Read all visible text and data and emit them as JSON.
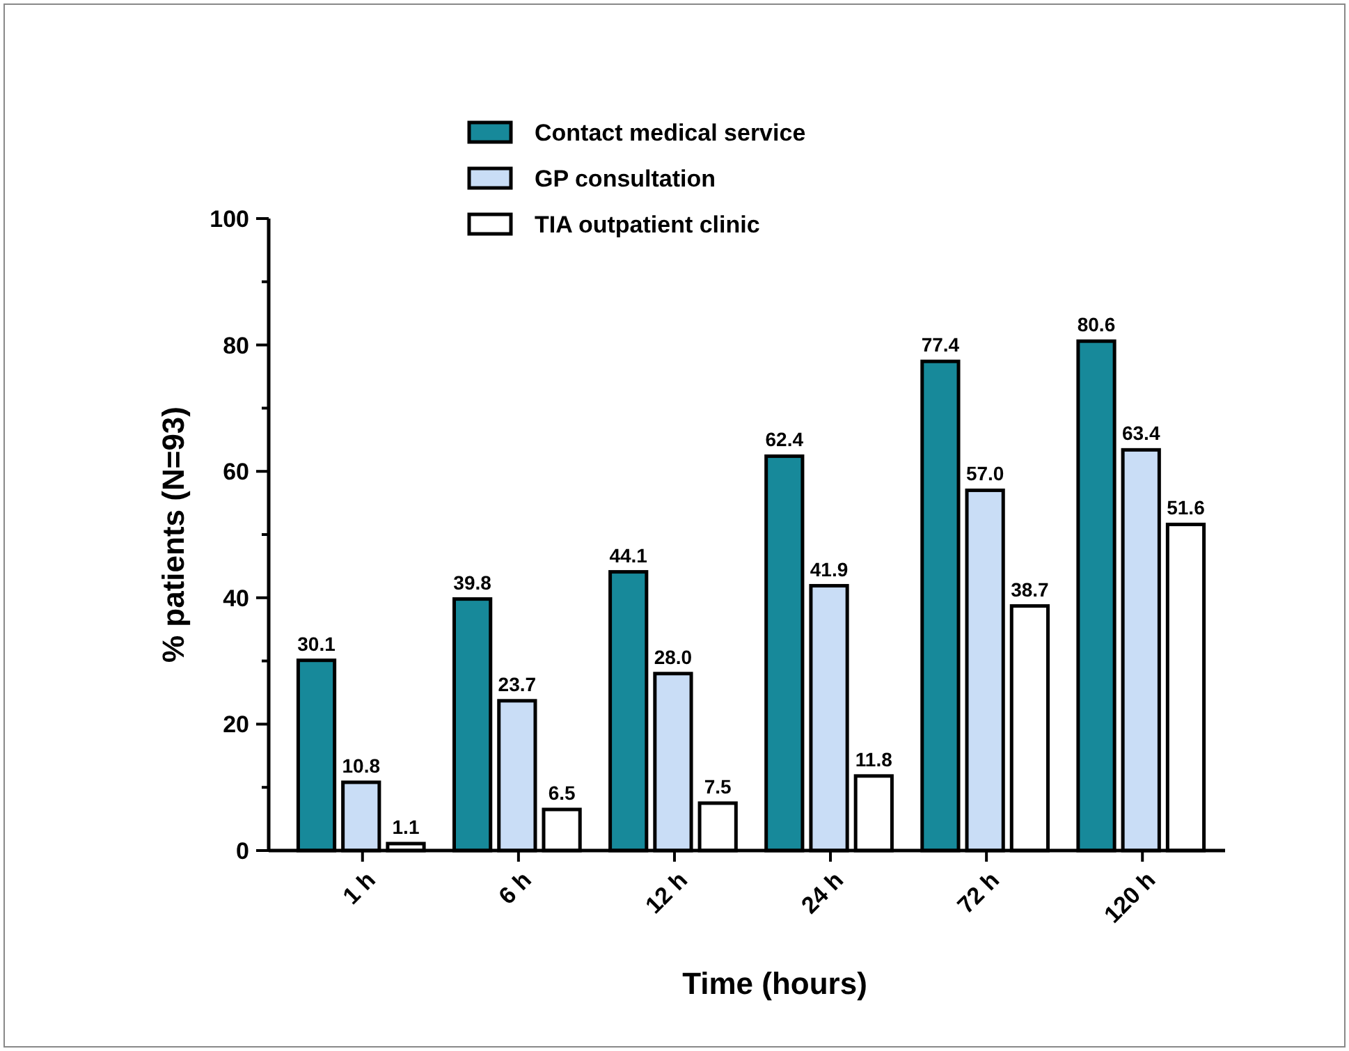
{
  "chart_data": {
    "type": "bar",
    "xlabel": "Time (hours)",
    "ylabel": "% patients (N=93)",
    "categories": [
      "1 h",
      "6 h",
      "12 h",
      "24 h",
      "72 h",
      "120 h"
    ],
    "series": [
      {
        "name": "Contact medical service",
        "color": "#17899a",
        "values": [
          30.1,
          39.8,
          44.1,
          62.4,
          77.4,
          80.6
        ],
        "value_labels": [
          "30.1",
          "39.8",
          "44.1",
          "62.4",
          "77.4",
          "80.6"
        ]
      },
      {
        "name": "GP consultation",
        "color": "#c9ddf6",
        "values": [
          10.8,
          23.7,
          28.0,
          41.9,
          57.0,
          63.4
        ],
        "value_labels": [
          "10.8",
          "23.7",
          "28.0",
          "41.9",
          "57.0",
          "63.4"
        ]
      },
      {
        "name": "TIA outpatient clinic",
        "color": "#ffffff",
        "values": [
          1.1,
          6.5,
          7.5,
          11.8,
          38.7,
          51.6
        ],
        "value_labels": [
          "1.1",
          "6.5",
          "7.5",
          "11.8",
          "38.7",
          "51.6"
        ]
      }
    ],
    "ylim": [
      0,
      100
    ],
    "yticks": [
      0,
      {
        "value": 10,
        "label": null
      },
      20,
      {
        "value": 30,
        "label": null
      },
      40,
      {
        "value": 50,
        "label": null
      },
      60,
      {
        "value": 70,
        "label": null
      },
      80,
      {
        "value": 90,
        "label": null
      },
      100
    ],
    "legend": "top",
    "grid": false
  }
}
